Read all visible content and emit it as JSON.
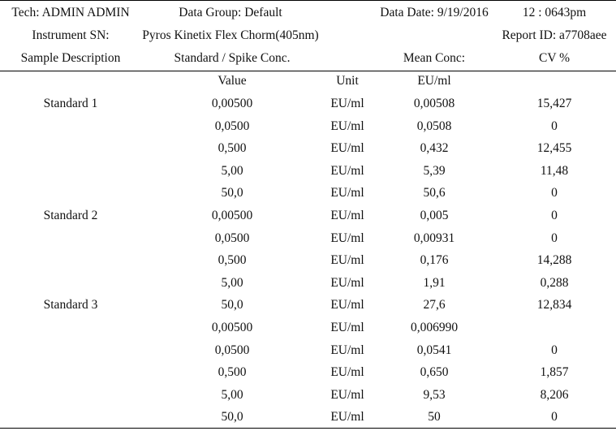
{
  "header": {
    "row1": {
      "tech": "Tech: ADMIN ADMIN",
      "data_group": "Data Group: Default",
      "data_date": "Data Date: 9/19/2016",
      "time": "12 : 0643pm"
    },
    "row2": {
      "instrument_sn": "Instrument SN:",
      "instrument": "Pyros Kinetix Flex Chorm(405nm)",
      "report_id": "Report ID: a7708aee"
    },
    "row3": {
      "sample_description": "Sample Description",
      "standard_conc": "Standard / Spike Conc.",
      "mean_conc": "Mean Conc:",
      "cv": "CV %"
    }
  },
  "subheader": {
    "value": "Value",
    "unit": "Unit",
    "eu_ml": "EU/ml"
  },
  "rows": [
    {
      "sample": "Standard 1",
      "value": "0,00500",
      "unit": "EU/ml",
      "mean": "0,00508",
      "cv": "15,427"
    },
    {
      "sample": "",
      "value": "0,0500",
      "unit": "EU/ml",
      "mean": "0,0508",
      "cv": "0"
    },
    {
      "sample": "",
      "value": "0,500",
      "unit": "EU/ml",
      "mean": "0,432",
      "cv": "12,455"
    },
    {
      "sample": "",
      "value": "5,00",
      "unit": "EU/ml",
      "mean": "5,39",
      "cv": "11,48"
    },
    {
      "sample": "",
      "value": "50,0",
      "unit": "EU/ml",
      "mean": "50,6",
      "cv": "0"
    },
    {
      "sample": "Standard 2",
      "value": "0,00500",
      "unit": "EU/ml",
      "mean": "0,005",
      "cv": "0"
    },
    {
      "sample": "",
      "value": "0,0500",
      "unit": "EU/ml",
      "mean": "0,00931",
      "cv": "0"
    },
    {
      "sample": "",
      "value": "0,500",
      "unit": "EU/ml",
      "mean": "0,176",
      "cv": "14,288"
    },
    {
      "sample": "",
      "value": "5,00",
      "unit": "EU/ml",
      "mean": "1,91",
      "cv": "0,288"
    },
    {
      "sample": "Standard 3",
      "value": "50,0",
      "unit": "EU/ml",
      "mean": "27,6",
      "cv": "12,834"
    },
    {
      "sample": "",
      "value": "0,00500",
      "unit": "EU/ml",
      "mean": "0,006990",
      "cv": ""
    },
    {
      "sample": "",
      "value": "0,0500",
      "unit": "EU/ml",
      "mean": "0,0541",
      "cv": "0"
    },
    {
      "sample": "",
      "value": "0,500",
      "unit": "EU/ml",
      "mean": "0,650",
      "cv": "1,857"
    },
    {
      "sample": "",
      "value": "5,00",
      "unit": "EU/ml",
      "mean": "9,53",
      "cv": "8,206"
    },
    {
      "sample": "",
      "value": "50,0",
      "unit": "EU/ml",
      "mean": "50",
      "cv": "0"
    }
  ]
}
